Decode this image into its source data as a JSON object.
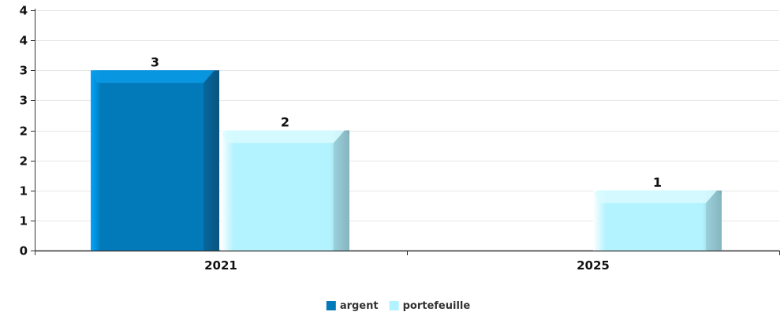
{
  "chart_data": {
    "type": "bar",
    "categories": [
      "2021",
      "2025"
    ],
    "series": [
      {
        "name": "argent",
        "values": [
          3,
          0
        ],
        "color": "#0279B8"
      },
      {
        "name": "portefeuille",
        "values": [
          2,
          1
        ],
        "color": "#B3F2FF"
      }
    ],
    "y_ticks": [
      0,
      0.5,
      1,
      1.5,
      2,
      2.5,
      3,
      3.5,
      4
    ],
    "y_tick_labels": [
      "0",
      "1",
      "1",
      "2",
      "2",
      "3",
      "3",
      "4",
      "4"
    ],
    "ylim": [
      0,
      4
    ],
    "grid": true,
    "legend_position": "bottom-center",
    "title": "",
    "xlabel": "",
    "ylabel": ""
  }
}
